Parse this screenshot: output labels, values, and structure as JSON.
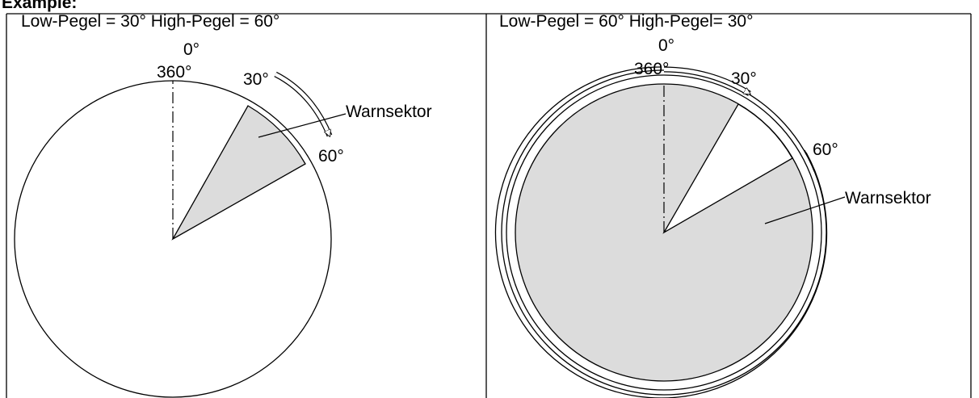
{
  "heading": "Example:",
  "colors": {
    "sector_fill": "#dcdcdc",
    "line": "#000000",
    "background": "#ffffff"
  },
  "panels": [
    {
      "title": "Low-Pegel = 30° High-Pegel = 60°",
      "top_label_a": "0°",
      "top_label_b": "360°",
      "angle_low": "30°",
      "angle_high": "60°",
      "sector_label": "Warnsektor",
      "low_level_deg": 30,
      "high_level_deg": 60
    },
    {
      "title": "Low-Pegel = 60° High-Pegel= 30°",
      "top_label_a": "0°",
      "top_label_b": "360°",
      "angle_low": "30°",
      "angle_high": "60°",
      "sector_label": "Warnsektor",
      "low_level_deg": 60,
      "high_level_deg": 30
    }
  ]
}
